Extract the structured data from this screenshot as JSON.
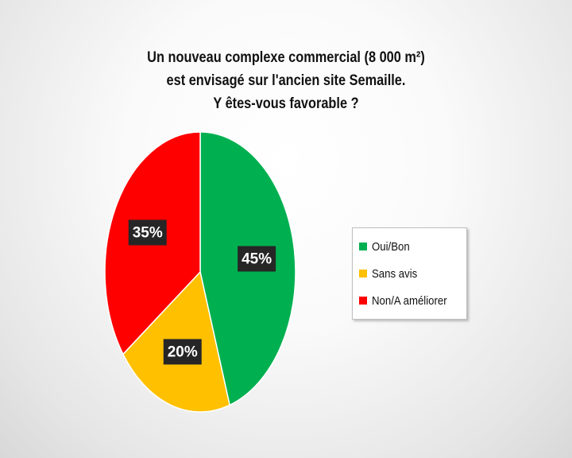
{
  "chart_data": {
    "type": "pie",
    "title_lines": [
      "Un nouveau complexe commercial (8 000 m²)",
      "est envisagé sur l'ancien site Semaille.",
      "Y êtes-vous favorable ?"
    ],
    "categories": [
      "Oui/Bon",
      "Sans avis",
      "Non/A améliorer"
    ],
    "values": [
      45,
      20,
      35
    ],
    "data_labels": [
      "45%",
      "20%",
      "35%"
    ],
    "colors": [
      "#00b050",
      "#ffc000",
      "#ff0000"
    ],
    "label_box_color": "#262626",
    "legend_position": "right"
  }
}
